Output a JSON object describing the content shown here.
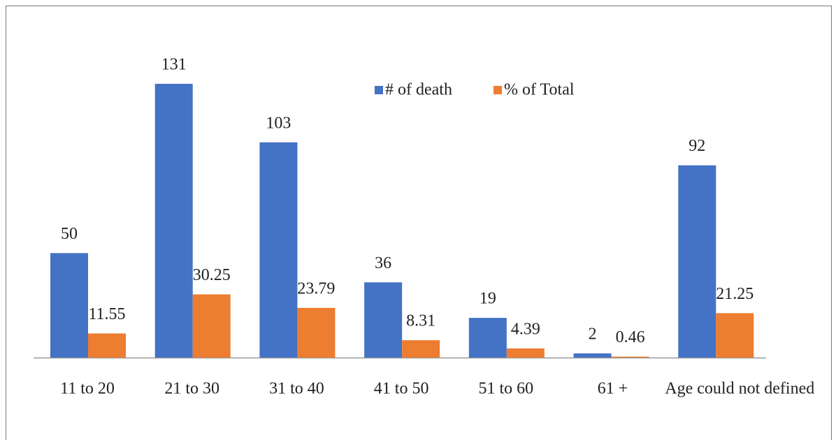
{
  "chart_data": {
    "type": "bar",
    "categories": [
      "11 to 20",
      "21 to 30",
      "31 to 40",
      "41 to 50",
      "51 to 60",
      "61 +",
      "Age could not defined"
    ],
    "series": [
      {
        "name": "# of death",
        "color": "#4472c4",
        "values": [
          50,
          131,
          103,
          36,
          19,
          2,
          92
        ]
      },
      {
        "name": "% of Total",
        "color": "#ed7d31",
        "values": [
          11.55,
          30.25,
          23.79,
          8.31,
          4.39,
          0.46,
          21.25
        ]
      }
    ],
    "legend": "top"
  }
}
